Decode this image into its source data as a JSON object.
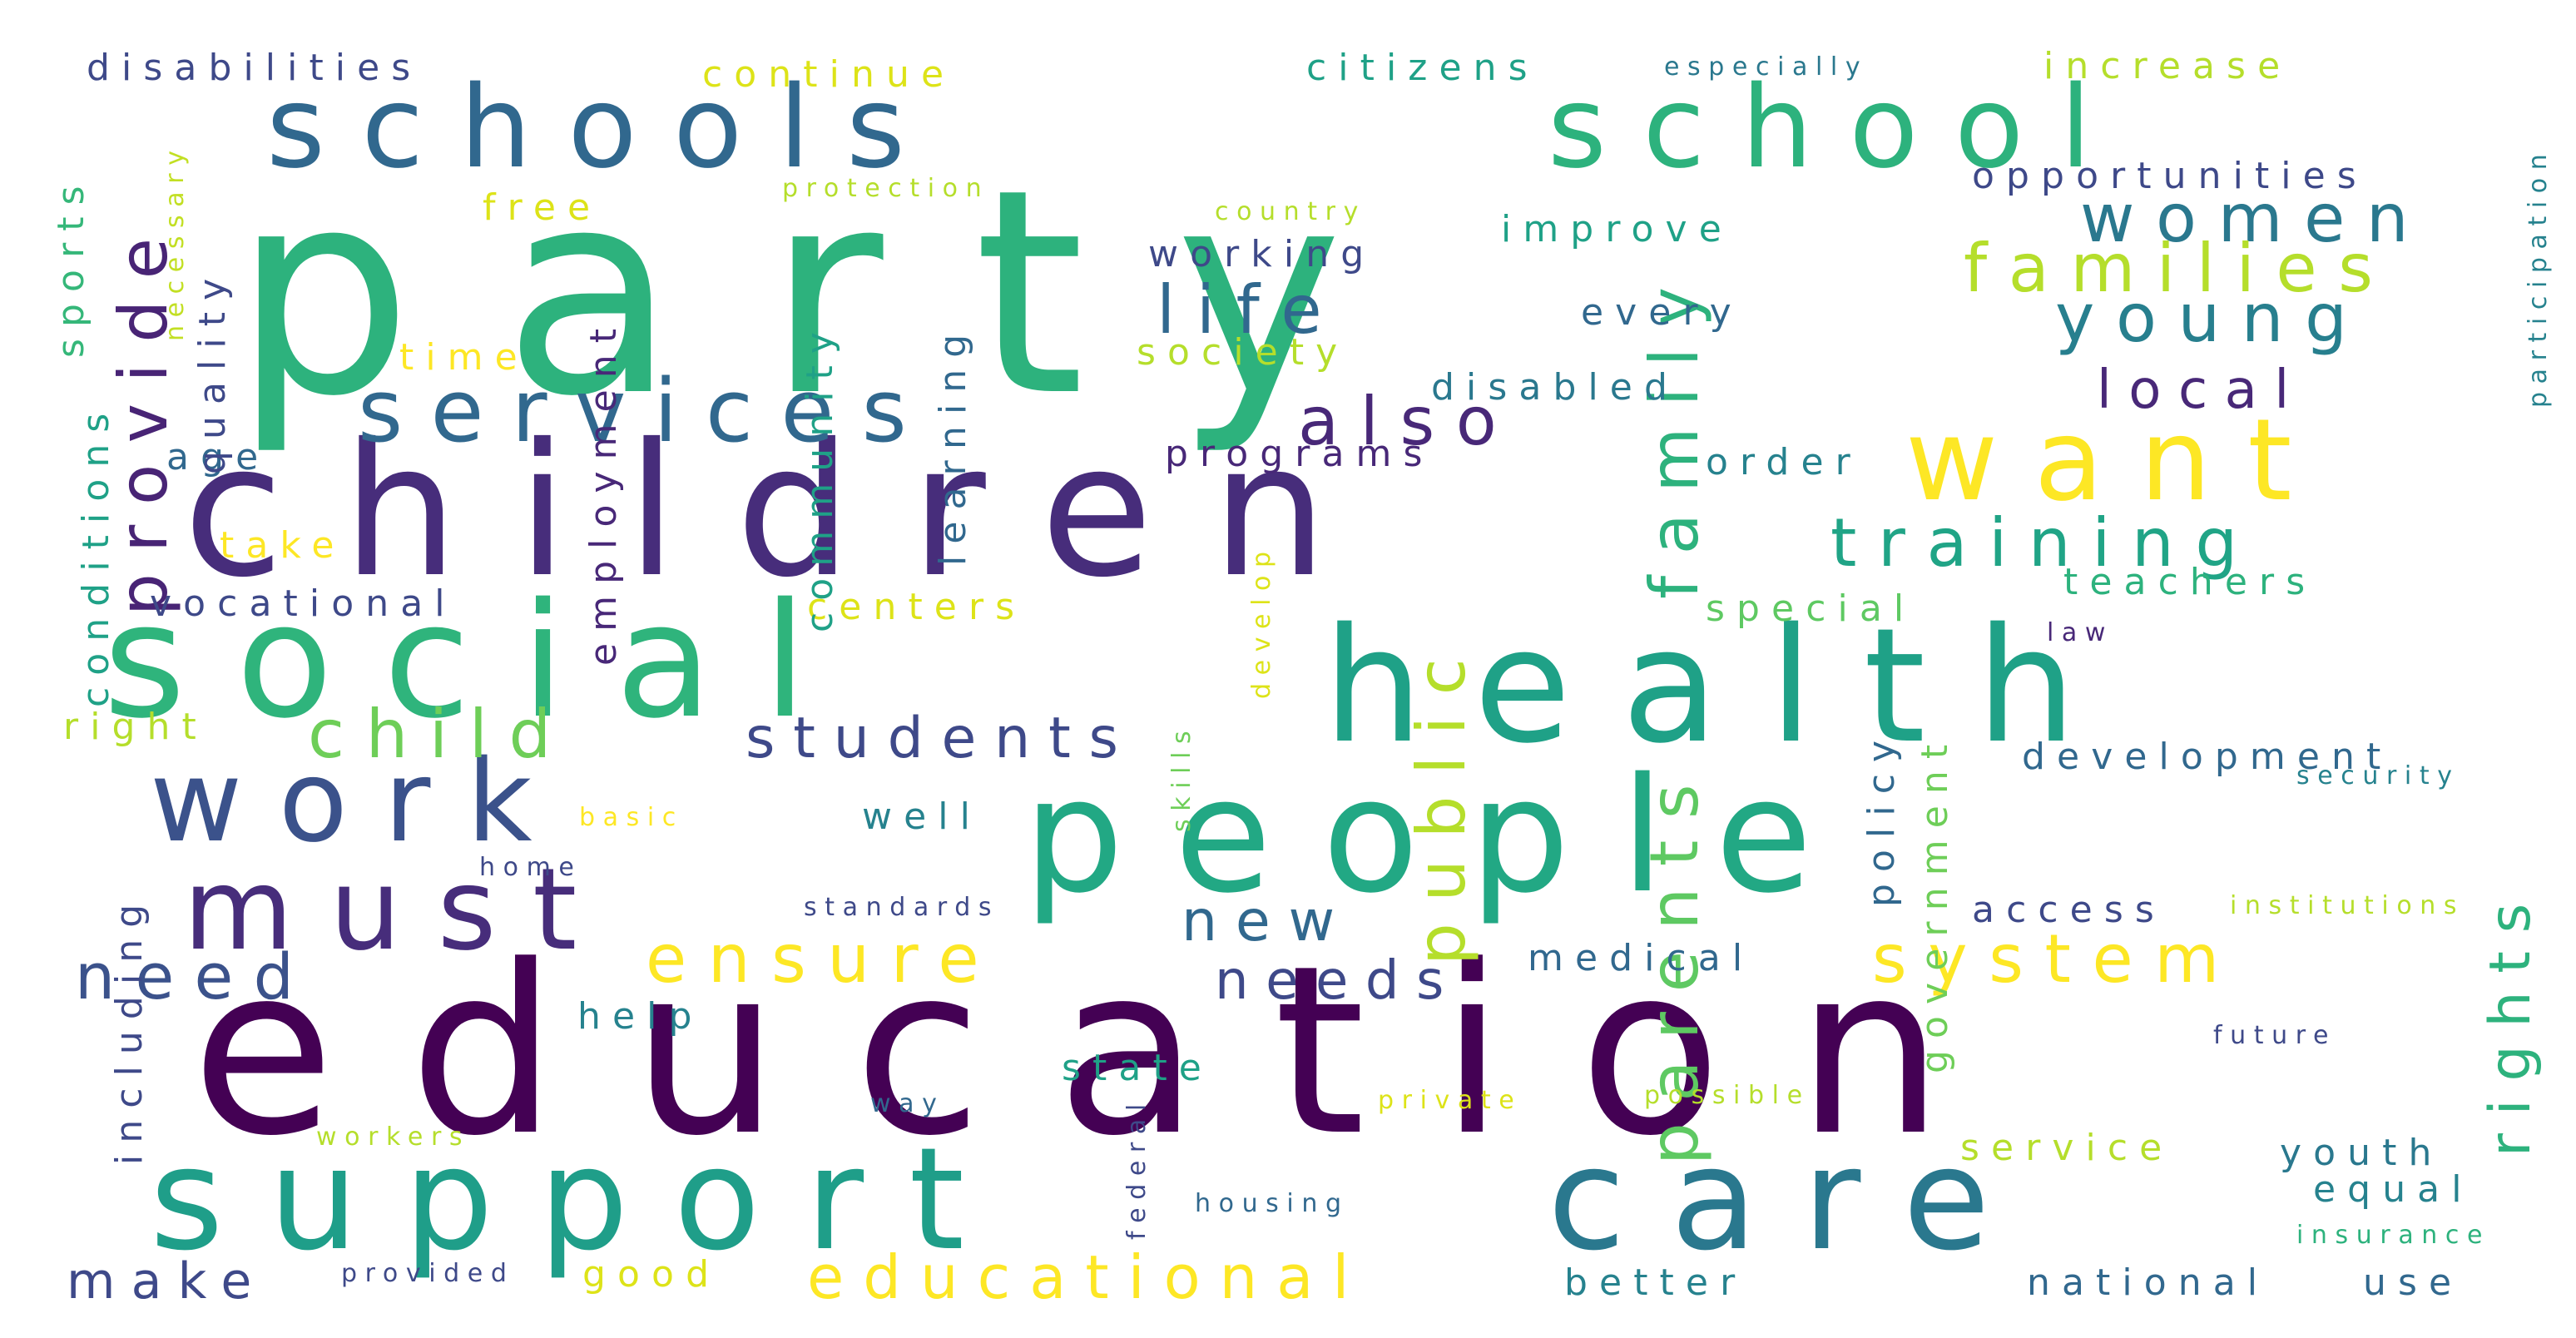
{
  "word_cloud": {
    "colors": {
      "background": "#ffffff",
      "palette": [
        "#440154",
        "#482878",
        "#3e4989",
        "#31688e",
        "#26828e",
        "#1f9e89",
        "#35b779",
        "#6ece58",
        "#b5de2b",
        "#fde725"
      ]
    },
    "words": [
      {
        "text": "party",
        "size": 170,
        "color": "#2db27d"
      },
      {
        "text": "education",
        "size": 140,
        "color": "#440154"
      },
      {
        "text": "children",
        "size": 110,
        "color": "#472d7b"
      },
      {
        "text": "social",
        "size": 95,
        "color": "#2fb47c"
      },
      {
        "text": "health",
        "size": 95,
        "color": "#1fa187"
      },
      {
        "text": "people",
        "size": 95,
        "color": "#22a884"
      },
      {
        "text": "support",
        "size": 85,
        "color": "#1f9e89"
      },
      {
        "text": "care",
        "size": 85,
        "color": "#2a788e"
      },
      {
        "text": "schools",
        "size": 68,
        "color": "#31688e"
      },
      {
        "text": "school",
        "size": 68,
        "color": "#2db27d"
      },
      {
        "text": "work",
        "size": 68,
        "color": "#3b528b"
      },
      {
        "text": "must",
        "size": 68,
        "color": "#472d7b"
      },
      {
        "text": "want",
        "size": 68,
        "color": "#fde725"
      },
      {
        "text": "services",
        "size": 52,
        "color": "#31688e"
      },
      {
        "text": "ensure",
        "size": 40,
        "color": "#fde725"
      },
      {
        "text": "system",
        "size": 40,
        "color": "#fde725"
      },
      {
        "text": "family",
        "size": 40,
        "color": "#2db27d"
      },
      {
        "text": "parents",
        "size": 40,
        "color": "#5ec962"
      },
      {
        "text": "public",
        "size": 40,
        "color": "#b5de2b"
      },
      {
        "text": "provide",
        "size": 40,
        "color": "#482475"
      },
      {
        "text": "training",
        "size": 40,
        "color": "#20a486"
      },
      {
        "text": "young",
        "size": 40,
        "color": "#277f8e"
      },
      {
        "text": "women",
        "size": 40,
        "color": "#2a788e"
      },
      {
        "text": "families",
        "size": 40,
        "color": "#b5de2b"
      },
      {
        "text": "life",
        "size": 40,
        "color": "#31688e"
      },
      {
        "text": "also",
        "size": 40,
        "color": "#482878"
      },
      {
        "text": "child",
        "size": 40,
        "color": "#6ece58"
      },
      {
        "text": "need",
        "size": 38,
        "color": "#3b528b"
      },
      {
        "text": "educational",
        "size": 36,
        "color": "#fde725"
      },
      {
        "text": "rights",
        "size": 34,
        "color": "#2db27d"
      },
      {
        "text": "students",
        "size": 34,
        "color": "#3e4989"
      },
      {
        "text": "local",
        "size": 32,
        "color": "#482878"
      },
      {
        "text": "new",
        "size": 34,
        "color": "#31688e"
      },
      {
        "text": "needs",
        "size": 32,
        "color": "#3e4989"
      },
      {
        "text": "make",
        "size": 30,
        "color": "#3e4989"
      },
      {
        "text": "disabilities",
        "size": 22,
        "color": "#3e4989"
      },
      {
        "text": "continue",
        "size": 22,
        "color": "#dde318"
      },
      {
        "text": "citizens",
        "size": 22,
        "color": "#1fa187"
      },
      {
        "text": "especially",
        "size": 15,
        "color": "#2a788e"
      },
      {
        "text": "increase",
        "size": 22,
        "color": "#b5de2b"
      },
      {
        "text": "participation",
        "size": 15,
        "color": "#26828e"
      },
      {
        "text": "opportunities",
        "size": 22,
        "color": "#3e4989"
      },
      {
        "text": "protection",
        "size": 15,
        "color": "#b5de2b"
      },
      {
        "text": "necessary",
        "size": 15,
        "color": "#c2df23"
      },
      {
        "text": "free",
        "size": 22,
        "color": "#dde318"
      },
      {
        "text": "country",
        "size": 15,
        "color": "#b5de2b"
      },
      {
        "text": "improve",
        "size": 22,
        "color": "#1fa187"
      },
      {
        "text": "working",
        "size": 22,
        "color": "#3e4989"
      },
      {
        "text": "every",
        "size": 22,
        "color": "#31688e"
      },
      {
        "text": "society",
        "size": 22,
        "color": "#b5de2b"
      },
      {
        "text": "time",
        "size": 22,
        "color": "#fde725"
      },
      {
        "text": "disabled",
        "size": 22,
        "color": "#2a788e"
      },
      {
        "text": "programs",
        "size": 22,
        "color": "#482878"
      },
      {
        "text": "order",
        "size": 22,
        "color": "#26828e"
      },
      {
        "text": "age",
        "size": 22,
        "color": "#31688e"
      },
      {
        "text": "take",
        "size": 22,
        "color": "#fde725"
      },
      {
        "text": "vocational",
        "size": 22,
        "color": "#3e4989"
      },
      {
        "text": "centers",
        "size": 22,
        "color": "#dde318"
      },
      {
        "text": "special",
        "size": 22,
        "color": "#5ec962"
      },
      {
        "text": "teachers",
        "size": 22,
        "color": "#2db27d"
      },
      {
        "text": "law",
        "size": 15,
        "color": "#482878"
      },
      {
        "text": "right",
        "size": 22,
        "color": "#b5de2b"
      },
      {
        "text": "development",
        "size": 22,
        "color": "#31688e"
      },
      {
        "text": "security",
        "size": 15,
        "color": "#26828e"
      },
      {
        "text": "basic",
        "size": 15,
        "color": "#fde725"
      },
      {
        "text": "well",
        "size": 22,
        "color": "#26828e"
      },
      {
        "text": "home",
        "size": 15,
        "color": "#3e4989"
      },
      {
        "text": "standards",
        "size": 15,
        "color": "#3e4989"
      },
      {
        "text": "access",
        "size": 22,
        "color": "#3e4989"
      },
      {
        "text": "institutions",
        "size": 15,
        "color": "#b5de2b"
      },
      {
        "text": "medical",
        "size": 22,
        "color": "#31688e"
      },
      {
        "text": "help",
        "size": 22,
        "color": "#26828e"
      },
      {
        "text": "state",
        "size": 22,
        "color": "#1fa187"
      },
      {
        "text": "future",
        "size": 15,
        "color": "#3e4989"
      },
      {
        "text": "way",
        "size": 15,
        "color": "#31688e"
      },
      {
        "text": "private",
        "size": 15,
        "color": "#dde318"
      },
      {
        "text": "possible",
        "size": 15,
        "color": "#b5de2b"
      },
      {
        "text": "workers",
        "size": 15,
        "color": "#b5de2b"
      },
      {
        "text": "service",
        "size": 22,
        "color": "#b5de2b"
      },
      {
        "text": "youth",
        "size": 22,
        "color": "#2a788e"
      },
      {
        "text": "housing",
        "size": 15,
        "color": "#31688e"
      },
      {
        "text": "equal",
        "size": 22,
        "color": "#26828e"
      },
      {
        "text": "insurance",
        "size": 15,
        "color": "#2db27d"
      },
      {
        "text": "provided",
        "size": 15,
        "color": "#3e4989"
      },
      {
        "text": "good",
        "size": 22,
        "color": "#dde318"
      },
      {
        "text": "better",
        "size": 22,
        "color": "#26828e"
      },
      {
        "text": "national",
        "size": 22,
        "color": "#31688e"
      },
      {
        "text": "use",
        "size": 22,
        "color": "#31688e"
      },
      {
        "text": "sports",
        "size": 22,
        "color": "#35b779"
      },
      {
        "text": "conditions",
        "size": 22,
        "color": "#1fa187"
      },
      {
        "text": "quality",
        "size": 22,
        "color": "#3e4989"
      },
      {
        "text": "employment",
        "size": 22,
        "color": "#482878"
      },
      {
        "text": "community",
        "size": 22,
        "color": "#1fa187"
      },
      {
        "text": "learning",
        "size": 22,
        "color": "#31688e"
      },
      {
        "text": "including",
        "size": 22,
        "color": "#3e4989"
      },
      {
        "text": "develop",
        "size": 15,
        "color": "#dde318"
      },
      {
        "text": "skills",
        "size": 15,
        "color": "#6ece58"
      },
      {
        "text": "federal",
        "size": 15,
        "color": "#3e4989"
      },
      {
        "text": "policy",
        "size": 22,
        "color": "#31688e"
      },
      {
        "text": "government",
        "size": 22,
        "color": "#6ece58"
      }
    ]
  }
}
